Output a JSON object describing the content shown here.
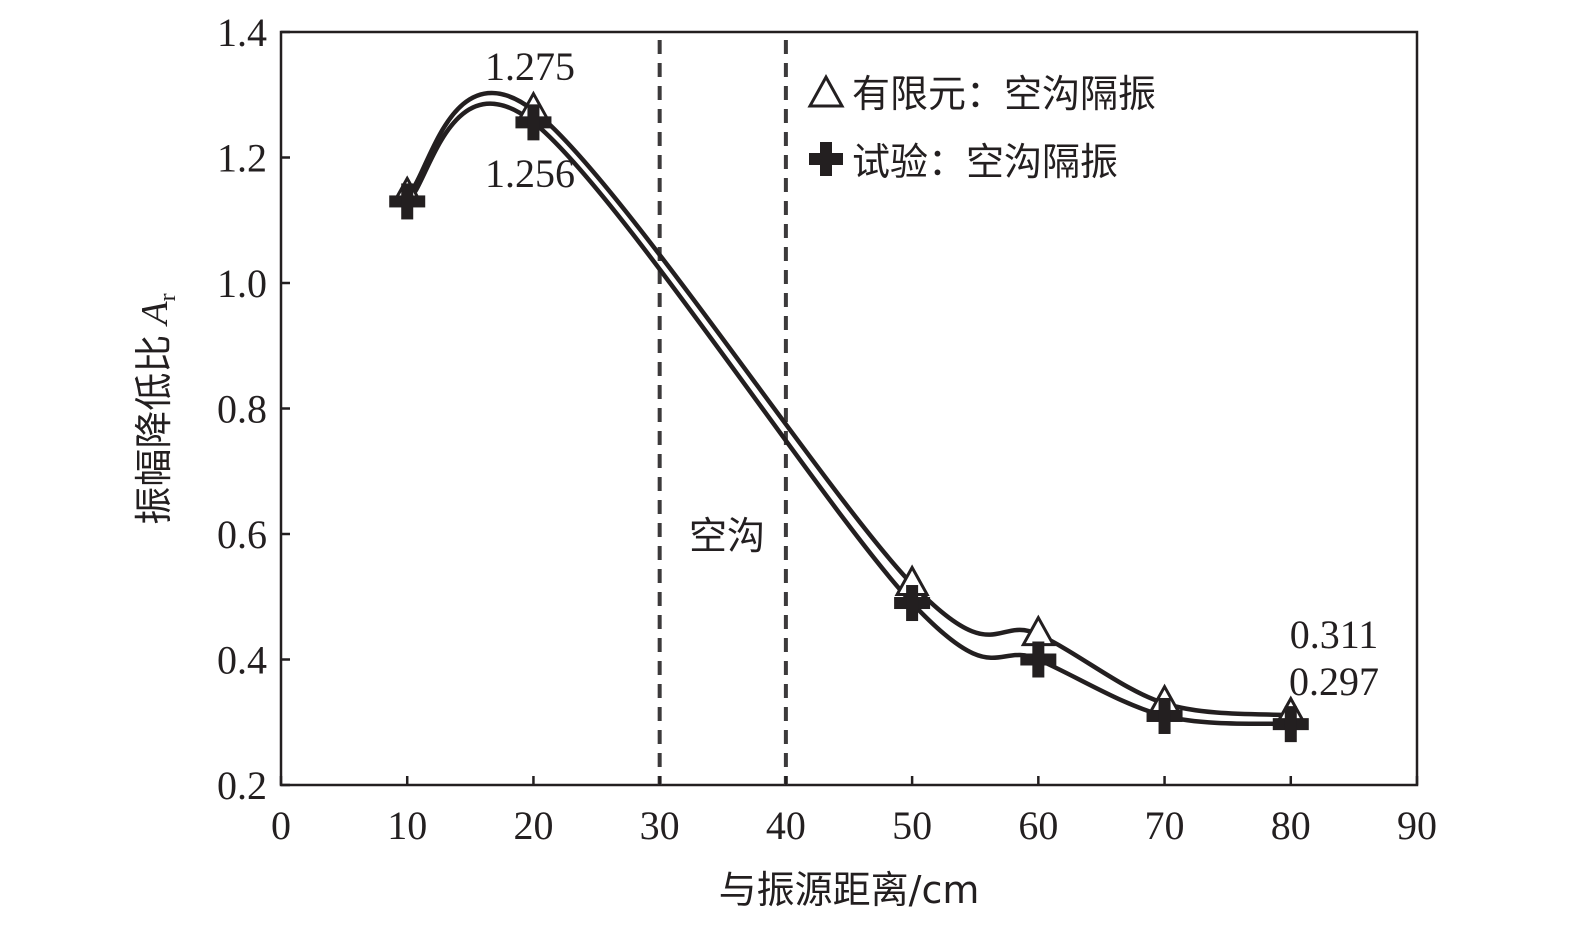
{
  "chart_data": {
    "type": "line",
    "xlabel": "与振源距离/cm",
    "ylabel": "振幅降低比",
    "ylabel_symbol": "A",
    "ylabel_subscript": "r",
    "xlim": [
      0,
      90
    ],
    "ylim": [
      0.2,
      1.4
    ],
    "x_ticks": [
      0,
      10,
      20,
      30,
      40,
      50,
      60,
      70,
      80,
      90
    ],
    "y_ticks": [
      0.2,
      0.4,
      0.6,
      0.8,
      1.0,
      1.2,
      1.4
    ],
    "grid": false,
    "legend_position": "top-right",
    "series": [
      {
        "name": "有限元：空沟隔振",
        "marker": "triangle",
        "x": [
          10,
          20,
          50,
          60,
          70,
          80
        ],
        "y": [
          1.14,
          1.275,
          0.52,
          0.44,
          0.33,
          0.311
        ]
      },
      {
        "name": "试验：空沟隔振",
        "marker": "plus",
        "x": [
          10,
          20,
          50,
          60,
          70,
          80
        ],
        "y": [
          1.13,
          1.256,
          0.49,
          0.4,
          0.31,
          0.297
        ]
      }
    ],
    "vertical_lines": [
      30,
      40
    ],
    "region_label": "空沟",
    "annotations": [
      {
        "text": "1.275",
        "x": 20,
        "y": 1.275,
        "position": "above"
      },
      {
        "text": "1.256",
        "x": 20,
        "y": 1.256,
        "position": "below"
      },
      {
        "text": "0.311",
        "x": 80,
        "y": 0.311,
        "position": "above"
      },
      {
        "text": "0.297",
        "x": 80,
        "y": 0.297,
        "position": "above"
      }
    ],
    "colors": {
      "line": "#231f20",
      "dash": "#3c3a3b"
    }
  }
}
